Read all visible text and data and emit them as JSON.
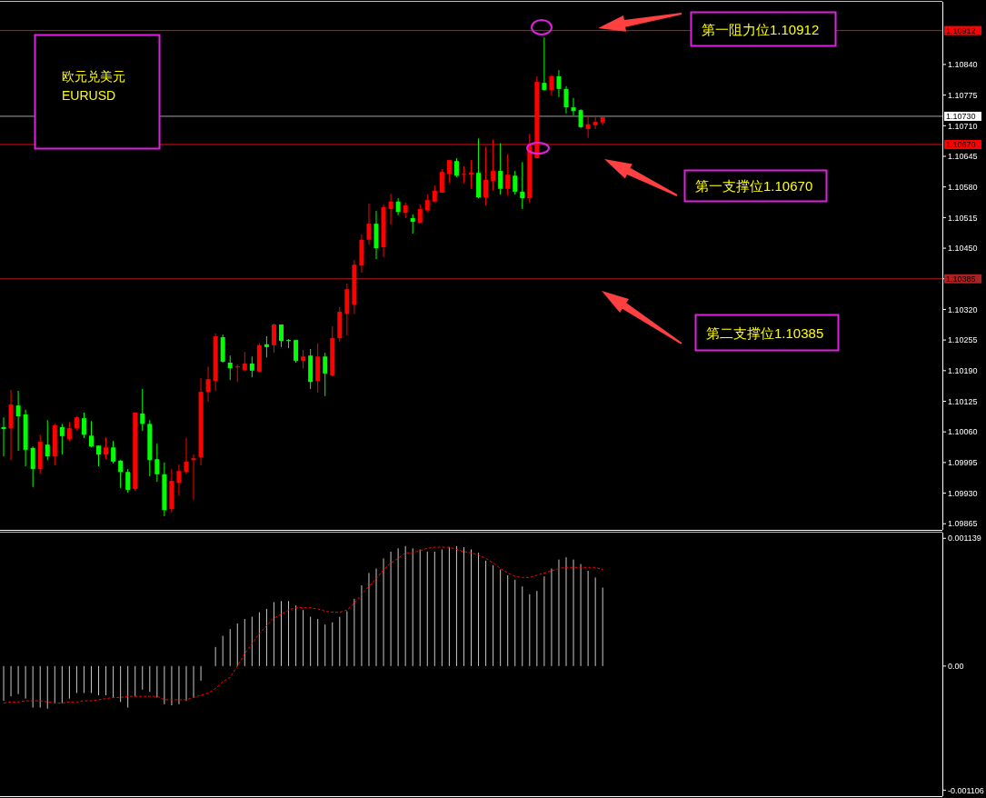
{
  "chart_data": [
    {
      "type": "candlestick",
      "tick_labels": "y",
      "categories": [
        null,
        null,
        null,
        null,
        null,
        null,
        null,
        null,
        null,
        null,
        null,
        null,
        null,
        null,
        null,
        null,
        null,
        null,
        null,
        null,
        null,
        null,
        null,
        null,
        null,
        null,
        null,
        null,
        null,
        null,
        null,
        null,
        null,
        null,
        null,
        null,
        null,
        null,
        null,
        null,
        null,
        null,
        null,
        null,
        null,
        null,
        null,
        null,
        null,
        null,
        null,
        null,
        null,
        null,
        null,
        null,
        null,
        null,
        null,
        null,
        null,
        null,
        null,
        null,
        null,
        null,
        null,
        null,
        null,
        null,
        null,
        null,
        null,
        null,
        null,
        null,
        null,
        null,
        null,
        null,
        null,
        null,
        null,
        null,
        null,
        null,
        null,
        null,
        null,
        null,
        null,
        null,
        null,
        null,
        null,
        null,
        null,
        null,
        null,
        null,
        null,
        null,
        null,
        null,
        null,
        null,
        null,
        null,
        null,
        null,
        null,
        null,
        null,
        null,
        null,
        null,
        null,
        null,
        null,
        null,
        null,
        null,
        null,
        null,
        null,
        null,
        null,
        null,
        null
      ],
      "ohlc": [
        [
          1.1007,
          1.10091,
          1.10008,
          1.10066
        ],
        [
          1.10068,
          1.10149,
          1.1,
          1.10118
        ],
        [
          1.10116,
          1.10147,
          1.1002,
          1.10093
        ],
        [
          1.10097,
          1.10107,
          1.09987,
          1.10022
        ],
        [
          1.10026,
          1.10029,
          1.09943,
          1.09981
        ],
        [
          1.09981,
          1.10054,
          1.09971,
          1.10039
        ],
        [
          1.10033,
          1.10085,
          1.1,
          1.10008
        ],
        [
          1.10008,
          1.10077,
          1.09989,
          1.10074
        ],
        [
          1.1007,
          1.10077,
          1.10012,
          1.10051
        ],
        [
          1.10045,
          1.10081,
          1.10041,
          1.10068
        ],
        [
          1.10068,
          1.10093,
          1.10064,
          1.10091
        ],
        [
          1.10089,
          1.10101,
          1.10047,
          1.10054
        ],
        [
          1.10052,
          1.10083,
          1.10027,
          1.10029
        ],
        [
          1.10031,
          1.10031,
          1.09987,
          1.10012
        ],
        [
          1.10012,
          1.10049,
          1.10002,
          1.10027
        ],
        [
          1.10027,
          1.10041,
          1.09993,
          1.09997
        ],
        [
          1.09999,
          1.1,
          1.09941,
          1.09975
        ],
        [
          1.09975,
          1.09981,
          1.09931,
          1.09937
        ],
        [
          1.09939,
          1.10101,
          1.09935,
          1.10101
        ],
        [
          1.10099,
          1.10151,
          1.10062,
          1.10077
        ],
        [
          1.10077,
          1.10085,
          1.09966,
          1.1
        ],
        [
          1.10002,
          1.10035,
          1.09954,
          1.0997
        ],
        [
          1.0997,
          1.09995,
          1.09881,
          1.09894
        ],
        [
          1.09896,
          1.09981,
          1.09889,
          1.09956
        ],
        [
          1.09952,
          1.09991,
          1.09925,
          1.09977
        ],
        [
          1.09975,
          1.10047,
          1.0997,
          1.09997
        ],
        [
          1.1,
          1.10012,
          1.09916,
          1.10004
        ],
        [
          1.10006,
          1.10174,
          1.09989,
          1.10145
        ],
        [
          1.10145,
          1.10199,
          1.10124,
          1.10172
        ],
        [
          1.10168,
          1.10269,
          1.10147,
          1.10263
        ],
        [
          1.10261,
          1.10267,
          1.10207,
          1.10209
        ],
        [
          1.10207,
          1.10222,
          1.1017,
          1.10195
        ],
        [
          1.10197,
          1.10203,
          1.10166,
          1.10199
        ],
        [
          1.10191,
          1.1023,
          1.10188,
          1.10205
        ],
        [
          1.10205,
          1.1022,
          1.10176,
          1.1019
        ],
        [
          1.10188,
          1.10249,
          1.10188,
          1.10244
        ],
        [
          1.10246,
          1.10263,
          1.10218,
          1.1024
        ],
        [
          1.10244,
          1.1029,
          1.10228,
          1.10288
        ],
        [
          1.10288,
          1.10288,
          1.1024,
          1.10253
        ],
        [
          1.10255,
          1.10257,
          1.10238,
          1.10253
        ],
        [
          1.10255,
          1.10255,
          1.10207,
          1.10211
        ],
        [
          1.10211,
          1.10234,
          1.10195,
          1.1022
        ],
        [
          1.10222,
          1.10236,
          1.10151,
          1.10166
        ],
        [
          1.10168,
          1.10248,
          1.10143,
          1.1022
        ],
        [
          1.1022,
          1.10228,
          1.10136,
          1.10184
        ],
        [
          1.1018,
          1.10284,
          1.10178,
          1.10259
        ],
        [
          1.10259,
          1.10325,
          1.10251,
          1.10315
        ],
        [
          1.10311,
          1.10375,
          1.10265,
          1.10363
        ],
        [
          1.1033,
          1.10425,
          1.1031,
          1.10415
        ],
        [
          1.10413,
          1.10479,
          1.10398,
          1.10468
        ],
        [
          1.10468,
          1.10545,
          1.10458,
          1.10502
        ],
        [
          1.10502,
          1.10529,
          1.10427,
          1.1045
        ],
        [
          1.10452,
          1.10543,
          1.10431,
          1.10537
        ],
        [
          1.10533,
          1.10566,
          1.105,
          1.10549
        ],
        [
          1.10549,
          1.10556,
          1.1052,
          1.10527
        ],
        [
          1.10525,
          1.10547,
          1.10514,
          1.10541
        ],
        [
          1.10514,
          1.10522,
          1.10481,
          1.10506
        ],
        [
          1.10504,
          1.10543,
          1.10504,
          1.10533
        ],
        [
          1.10531,
          1.10564,
          1.10527,
          1.10552
        ],
        [
          1.10549,
          1.10583,
          1.10547,
          1.10572
        ],
        [
          1.10568,
          1.10618,
          1.10568,
          1.10612
        ],
        [
          1.10608,
          1.10637,
          1.10589,
          1.10637
        ],
        [
          1.10635,
          1.10641,
          1.10601,
          1.10604
        ],
        [
          1.10606,
          1.10624,
          1.10589,
          1.10608
        ],
        [
          1.10606,
          1.10637,
          1.10576,
          1.1061
        ],
        [
          1.1061,
          1.10683,
          1.10556,
          1.10558
        ],
        [
          1.10558,
          1.10666,
          1.10541,
          1.10595
        ],
        [
          1.10593,
          1.10681,
          1.10572,
          1.10614
        ],
        [
          1.10614,
          1.10673,
          1.10564,
          1.10576
        ],
        [
          1.10576,
          1.1065,
          1.10562,
          1.10606
        ],
        [
          1.10604,
          1.10614,
          1.10564,
          1.1057
        ],
        [
          1.1057,
          1.10633,
          1.10533,
          1.10556
        ],
        [
          1.10556,
          1.10693,
          1.10547,
          1.10668
        ],
        [
          1.10641,
          1.10815,
          1.10641,
          1.10803
        ],
        [
          1.10801,
          1.10898,
          1.10784,
          1.10786
        ],
        [
          1.10786,
          1.10818,
          1.10774,
          1.10815
        ],
        [
          1.10815,
          1.10828,
          1.10771,
          1.10788
        ],
        [
          1.10788,
          1.10794,
          1.10736,
          1.10749
        ],
        [
          1.10749,
          1.10769,
          1.10732,
          1.10741
        ],
        [
          1.10743,
          1.10745,
          1.10705,
          1.10707
        ],
        [
          1.10703,
          1.1073,
          1.10684,
          1.10713
        ],
        [
          1.10711,
          1.10728,
          1.10703,
          1.10718
        ],
        [
          1.10717,
          1.1073,
          1.10711,
          1.10728
        ],
        null,
        null,
        null,
        null,
        null,
        null,
        null,
        null,
        null,
        null,
        null,
        null,
        null,
        null,
        null,
        null,
        null,
        null,
        null,
        null,
        null,
        null,
        null,
        null,
        null,
        null,
        null,
        null,
        null,
        null,
        null,
        null,
        null,
        null,
        null,
        null,
        null,
        null,
        null,
        null,
        null,
        null,
        null,
        null,
        null,
        null
      ],
      "colors": [
        "#00ff00",
        "#ff0000",
        "#00ff00",
        "#00ff00",
        "#00ff00",
        "#ff0000",
        "#00ff00",
        "#ff0000",
        "#00ff00",
        "#ff0000",
        "#ff0000",
        "#00ff00",
        "#00ff00",
        "#00ff00",
        "#ff0000",
        "#00ff00",
        "#00ff00",
        "#00ff00",
        "#ff0000",
        "#00ff00",
        "#00ff00",
        "#00ff00",
        "#00ff00",
        "#ff0000",
        "#ff0000",
        "#ff0000",
        "#ff0000",
        "#ff0000",
        "#ff0000",
        "#ff0000",
        "#00ff00",
        "#00ff00",
        "#ff0000",
        "#ff0000",
        "#00ff00",
        "#ff0000",
        "#00ff00",
        "#ff0000",
        "#00ff00",
        "#00ff00",
        "#00ff00",
        "#ff0000",
        "#00ff00",
        "#ff0000",
        "#00ff00",
        "#ff0000",
        "#ff0000",
        "#ff0000",
        "#ff0000",
        "#ff0000",
        "#ff0000",
        "#00ff00",
        "#ff0000",
        "#ff0000",
        "#00ff00",
        "#ff0000",
        "#00ff00",
        "#ff0000",
        "#ff0000",
        "#ff0000",
        "#ff0000",
        "#ff0000",
        "#00ff00",
        "#ff0000",
        "#ff0000",
        "#00ff00",
        "#ff0000",
        "#ff0000",
        "#00ff00",
        "#ff0000",
        "#00ff00",
        "#00ff00",
        "#ff0000",
        "#ff0000",
        "#00ff00",
        "#ff0000",
        "#00ff00",
        "#00ff00",
        "#00ff00",
        "#00ff00",
        "#ff0000",
        "#ff0000",
        "#ff0000",
        null,
        null,
        null,
        null,
        null,
        null,
        null,
        null,
        null,
        null,
        null,
        null,
        null,
        null,
        null,
        null,
        null,
        null,
        null,
        null,
        null,
        null,
        null,
        null,
        null,
        null,
        null,
        null,
        null,
        null,
        null,
        null,
        null,
        null,
        null,
        null,
        null,
        null,
        null,
        null,
        null,
        null,
        null,
        null,
        null,
        null
      ],
      "ylim": [
        1.09852,
        1.10973
      ],
      "yticks": [
        {
          "value": 1.09865,
          "label": "1.09865"
        },
        {
          "value": 1.0993,
          "label": "1.09930"
        },
        {
          "value": 1.09995,
          "label": "1.09995"
        },
        {
          "value": 1.1006,
          "label": "1.10060"
        },
        {
          "value": 1.10125,
          "label": "1.10125"
        },
        {
          "value": 1.1019,
          "label": "1.10190"
        },
        {
          "value": 1.10255,
          "label": "1.10255"
        },
        {
          "value": 1.1032,
          "label": "1.10320"
        },
        {
          "value": 1.10385,
          "label": "1.10385"
        },
        {
          "value": 1.1045,
          "label": "1.10450"
        },
        {
          "value": 1.10515,
          "label": "1.10515"
        },
        {
          "value": 1.1058,
          "label": "1.10580"
        },
        {
          "value": 1.10645,
          "label": "1.10645"
        },
        {
          "value": 1.1071,
          "label": "1.10710"
        },
        {
          "value": 1.10775,
          "label": "1.10775"
        },
        {
          "value": 1.1084,
          "label": "1.10840"
        }
      ],
      "ref_lines": [
        {
          "axis": "y",
          "value": 1.10912,
          "label": "1.10912",
          "color": "#ff0000"
        },
        {
          "axis": "y",
          "value": 1.1073,
          "label": "1.10730",
          "color": "#a0a0a0"
        },
        {
          "axis": "y",
          "value": 1.1067,
          "label": "1.10670",
          "color": "#ff0000"
        },
        {
          "axis": "y",
          "value": 1.10385,
          "label": "1.10385",
          "color": "#b02020"
        }
      ],
      "annotations": [
        "欧元兑美元",
        "EURUSD",
        "第一阻力位1.10912",
        "第一支撑位1.10670",
        "第二支撑位1.10385"
      ]
    },
    {
      "type": "bar",
      "tick_labels": "y",
      "categories": [
        null,
        null,
        null,
        null,
        null,
        null,
        null,
        null,
        null,
        null,
        null,
        null,
        null,
        null,
        null,
        null,
        null,
        null,
        null,
        null,
        null,
        null,
        null,
        null,
        null,
        null,
        null,
        null,
        null,
        null,
        null,
        null,
        null,
        null,
        null,
        null,
        null,
        null,
        null,
        null,
        null,
        null,
        null,
        null,
        null,
        null,
        null,
        null,
        null,
        null,
        null,
        null,
        null,
        null,
        null,
        null,
        null,
        null,
        null,
        null,
        null,
        null,
        null,
        null,
        null,
        null,
        null,
        null,
        null,
        null,
        null,
        null,
        null,
        null,
        null,
        null,
        null,
        null,
        null,
        null,
        null,
        null,
        null,
        null,
        null,
        null,
        null,
        null,
        null,
        null,
        null,
        null,
        null,
        null,
        null,
        null,
        null,
        null,
        null,
        null,
        null,
        null,
        null,
        null,
        null,
        null,
        null,
        null,
        null,
        null,
        null,
        null,
        null,
        null,
        null,
        null,
        null,
        null,
        null,
        null,
        null,
        null,
        null,
        null,
        null,
        null,
        null,
        null,
        null
      ],
      "series": [
        {
          "type": "bar",
          "color": "#c8c8c8",
          "values": [
            -0.00031,
            -0.00027,
            -0.00025,
            -0.00029,
            -0.00037,
            -0.00037,
            -0.00038,
            -0.00033,
            -0.00033,
            -0.00029,
            -0.00024,
            -0.00024,
            -0.00024,
            -0.00026,
            -0.00026,
            -0.00028,
            -0.00032,
            -0.00037,
            -0.00027,
            -0.00021,
            -0.00023,
            -0.00028,
            -0.00034,
            -0.00035,
            -0.00034,
            -0.00031,
            -0.00028,
            -0.00013,
            0,
            0.00017,
            0.00027,
            0.00033,
            0.00038,
            0.00042,
            0.00044,
            0.00048,
            0.00051,
            0.00057,
            0.00058,
            0.00058,
            0.00054,
            0.0005,
            0.00044,
            0.00042,
            0.00037,
            0.00039,
            0.00044,
            0.00049,
            0.0006,
            0.00072,
            0.00083,
            0.00087,
            0.00096,
            0.00102,
            0.00105,
            0.00107,
            0.00105,
            0.00104,
            0.00102,
            0.00102,
            0.00104,
            0.00106,
            0.00107,
            0.00106,
            0.00104,
            0.00101,
            0.00094,
            0.0009,
            0.00086,
            0.00081,
            0.00077,
            0.00071,
            0.00064,
            0.00067,
            0.0008,
            0.00087,
            0.00095,
            0.00097,
            0.00095,
            0.00091,
            0.00085,
            0.00079,
            0.0007,
            null,
            null,
            null,
            null,
            null,
            null,
            null,
            null,
            null,
            null,
            null,
            null,
            null,
            null,
            null,
            null,
            null,
            null,
            null,
            null,
            null,
            null,
            null,
            null,
            null,
            null,
            null,
            null,
            null,
            null,
            null,
            null,
            null,
            null,
            null,
            null,
            null,
            null,
            null,
            null,
            null,
            null,
            null,
            null,
            null,
            null
          ]
        },
        {
          "type": "line",
          "color": "#ff0000",
          "line_style": "dashed",
          "values": [
            -0.00033,
            -0.00032,
            -0.00032,
            -0.00031,
            -0.00031,
            -0.00031,
            -0.00032,
            -0.00033,
            -0.00033,
            -0.00032,
            -0.00032,
            -0.00031,
            -0.00031,
            -0.0003,
            -0.00029,
            -0.00028,
            -0.00028,
            -0.00027,
            -0.00027,
            -0.00027,
            -0.00027,
            -0.00027,
            -0.0003,
            -0.0003,
            -0.0003,
            -0.0003,
            -0.00028,
            -0.00026,
            -0.00024,
            -0.0002,
            -0.00014,
            -0.0001,
            0,
            0.00011,
            0.0002,
            0.00029,
            0.00036,
            0.00043,
            0.00046,
            0.0005,
            0.00052,
            0.00052,
            0.00052,
            0.00051,
            0.00049,
            0.00048,
            0.00048,
            0.0005,
            0.00056,
            0.00064,
            0.00071,
            0.00078,
            0.00086,
            0.00092,
            0.00096,
            0.00101,
            0.00101,
            0.00103,
            0.00105,
            0.00106,
            0.00106,
            0.00106,
            0.00104,
            0.00102,
            0.00101,
            0.00099,
            0.00096,
            0.00092,
            0.00087,
            0.00083,
            0.0008,
            0.00079,
            0.00079,
            0.00081,
            0.00083,
            0.00085,
            0.00087,
            0.00088,
            0.00088,
            0.00088,
            0.00088,
            0.00088,
            0.00086,
            null,
            null,
            null,
            null,
            null,
            null,
            null,
            null,
            null,
            null,
            null,
            null,
            null,
            null,
            null,
            null,
            null,
            null,
            null,
            null,
            null,
            null,
            null,
            null,
            null,
            null,
            null,
            null,
            null,
            null,
            null,
            null,
            null,
            null,
            null,
            null,
            null,
            null,
            null,
            null,
            null,
            null,
            null,
            null,
            null,
            null
          ]
        }
      ],
      "ylim": [
        -0.00116,
        0.00119
      ],
      "yticks": [
        {
          "value": 0.001139,
          "label": "0.001139"
        },
        {
          "value": 0,
          "label": "0.00"
        },
        {
          "value": -0.001106,
          "label": "-0.001106"
        }
      ]
    }
  ]
}
